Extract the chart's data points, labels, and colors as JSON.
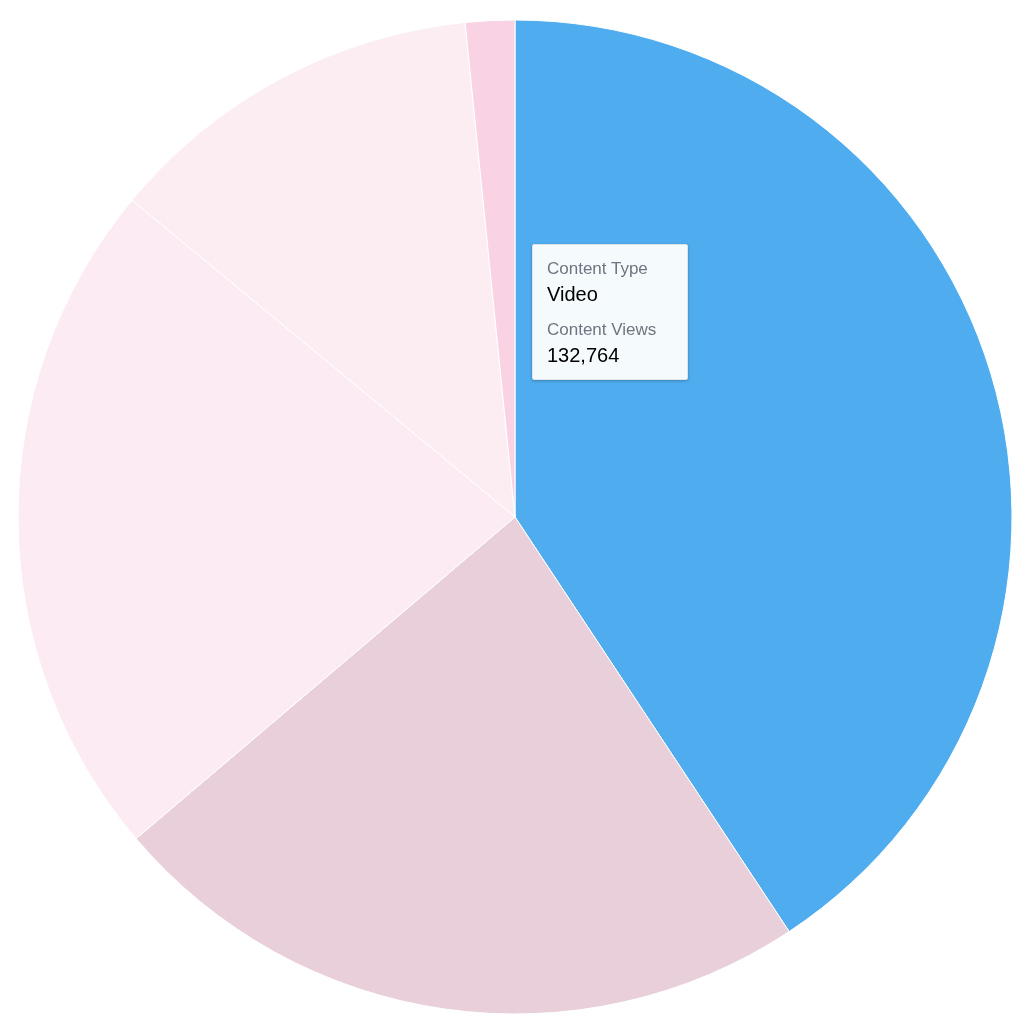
{
  "chart_data": {
    "type": "pie",
    "categories": [
      "Video",
      null,
      null,
      null,
      null
    ],
    "values": [
      40.7,
      23.1,
      22.2,
      12.4,
      1.6
    ],
    "colors": [
      "#4facee",
      "#e8cfda",
      "#fcebf2",
      "#fcedf3",
      "#f9d2e3"
    ],
    "annotations": [
      "Content Type",
      "Content Views",
      "132,764"
    ]
  }
}
